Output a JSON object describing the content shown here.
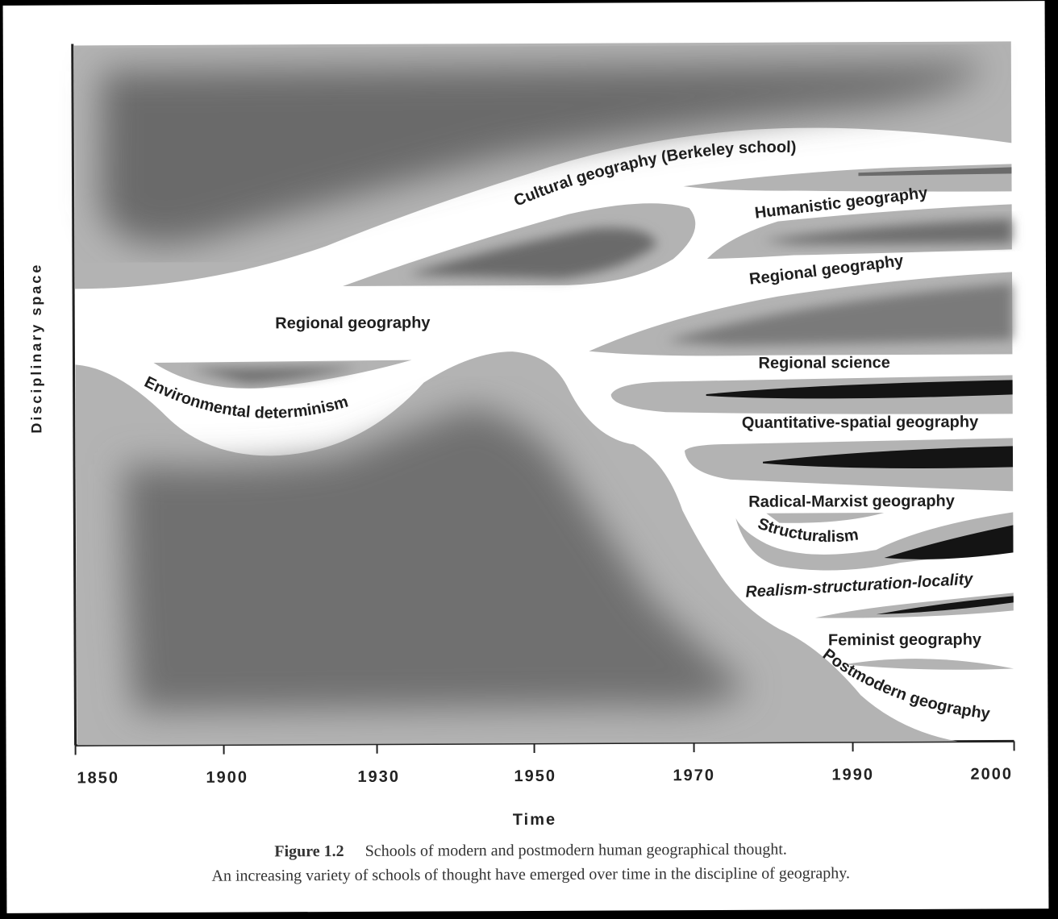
{
  "figure": {
    "y_axis_title": "Disciplinary space",
    "x_axis_title": "Time",
    "x_ticks": [
      "1850",
      "1900",
      "1930",
      "1950",
      "1970",
      "1990",
      "2000"
    ],
    "caption_number": "Figure 1.2",
    "caption_title": "Schools of modern and postmodern human geographical thought.",
    "caption_text": "An increasing variety of schools of thought have emerged over time in the discipline of geography."
  },
  "schools": {
    "cultural": "Cultural geography (Berkeley school)",
    "humanistic": "Humanistic geography",
    "regional_early": "Regional geography",
    "regional_late": "Regional geography",
    "environmental": "Environmental determinism",
    "regional_science": "Regional science",
    "quantitative": "Quantitative-spatial geography",
    "radical": "Radical-Marxist geography",
    "structuralism": "Structuralism",
    "realism": "Realism-structuration-locality",
    "feminist": "Feminist geography",
    "postmodern": "Postmodern geography"
  },
  "colors": {
    "light_band": "#b3b3b3",
    "mid_band": "#8f8f8f",
    "dark_core": "#6b6b6b",
    "black_core": "#141414",
    "background": "#ffffff"
  }
}
